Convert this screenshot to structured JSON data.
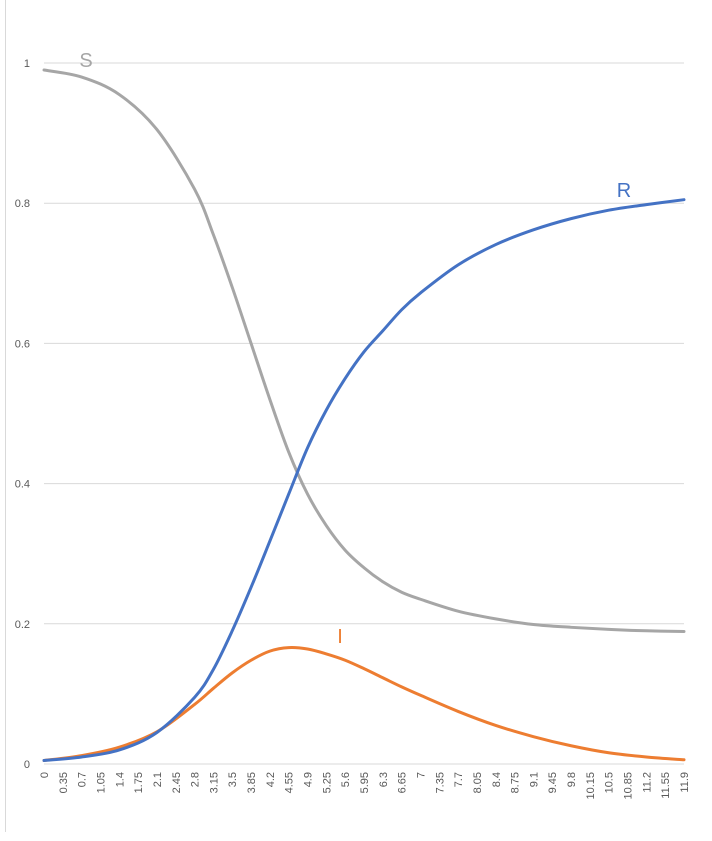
{
  "chart_data": {
    "type": "line",
    "title": "",
    "xlabel": "",
    "ylabel": "",
    "ylim": [
      0,
      1
    ],
    "y_ticks": [
      "0",
      "0.2",
      "0.4",
      "0.6",
      "0.8",
      "1"
    ],
    "x_ticks": [
      "0",
      "0.35",
      "0.7",
      "1.05",
      "1.4",
      "1.75",
      "2.1",
      "2.45",
      "2.8",
      "3.15",
      "3.5",
      "3.85",
      "4.2",
      "4.55",
      "4.9",
      "5.25",
      "5.6",
      "5.95",
      "6.3",
      "6.65",
      "7",
      "7.35",
      "7.7",
      "8.05",
      "8.4",
      "8.75",
      "9.1",
      "9.45",
      "9.8",
      "10.15",
      "10.5",
      "10.85",
      "11.2",
      "11.55",
      "11.9"
    ],
    "grid": true,
    "legend": "none",
    "x": [
      0,
      0.7,
      1.4,
      2.1,
      2.8,
      3.15,
      3.5,
      3.85,
      4.2,
      4.55,
      4.9,
      5.25,
      5.6,
      5.95,
      6.3,
      6.65,
      7,
      7.7,
      8.4,
      9.1,
      9.8,
      10.5,
      11.2,
      11.9
    ],
    "series": [
      {
        "name": "S",
        "color": "#a6a6a6",
        "values": [
          0.99,
          0.98,
          0.955,
          0.905,
          0.82,
          0.755,
          0.68,
          0.6,
          0.52,
          0.445,
          0.385,
          0.34,
          0.305,
          0.28,
          0.26,
          0.245,
          0.235,
          0.218,
          0.207,
          0.199,
          0.195,
          0.192,
          0.19,
          0.189
        ]
      },
      {
        "name": "I",
        "color": "#ed7d31",
        "values": [
          0.005,
          0.012,
          0.024,
          0.046,
          0.085,
          0.108,
          0.13,
          0.148,
          0.161,
          0.166,
          0.164,
          0.157,
          0.148,
          0.136,
          0.123,
          0.11,
          0.098,
          0.075,
          0.055,
          0.039,
          0.026,
          0.016,
          0.01,
          0.006
        ]
      },
      {
        "name": "R",
        "color": "#4472c4",
        "values": [
          0.005,
          0.01,
          0.02,
          0.045,
          0.095,
          0.135,
          0.19,
          0.252,
          0.318,
          0.385,
          0.451,
          0.505,
          0.55,
          0.588,
          0.618,
          0.648,
          0.672,
          0.712,
          0.741,
          0.762,
          0.778,
          0.79,
          0.798,
          0.805
        ]
      }
    ],
    "annotations": [
      {
        "text": "S",
        "series": "S"
      },
      {
        "text": "R",
        "series": "R"
      },
      {
        "text": "I",
        "series": "I"
      }
    ]
  }
}
